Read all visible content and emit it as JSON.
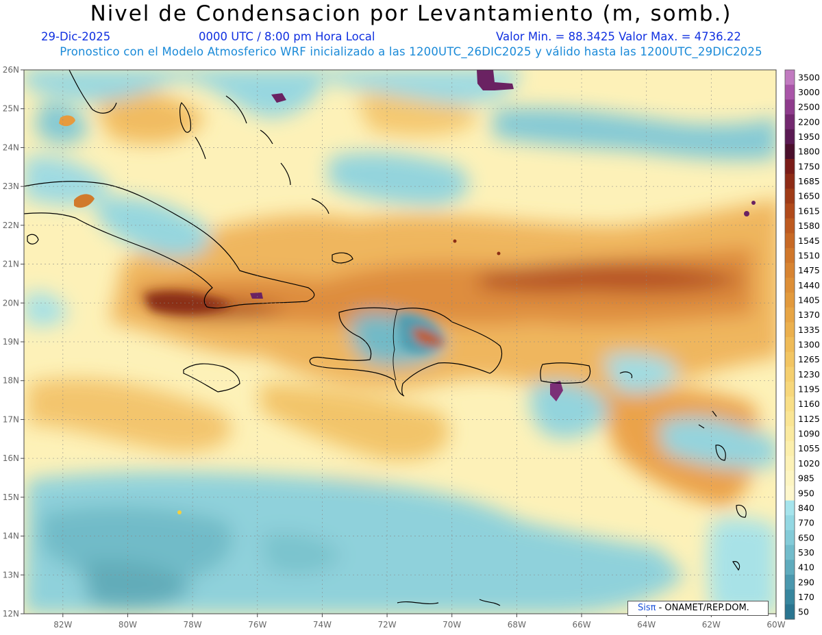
{
  "title": "Nivel de Condensacion por Levantamiento (m, somb.)",
  "header": {
    "date": "29-Dic-2025",
    "time": "0000 UTC / 8:00 pm Hora Local",
    "minmax": "Valor Min. = 88.3425  Valor Max. = 4736.22",
    "subtitle": "Pronostico con el Modelo Atmosferico WRF inicializado a las 1200UTC_26DIC2025 y válido hasta las  1200UTC_29DIC2025"
  },
  "map": {
    "lon_labels": [
      "82W",
      "80W",
      "78W",
      "76W",
      "74W",
      "72W",
      "70W",
      "68W",
      "66W",
      "64W",
      "62W",
      "60W"
    ],
    "lat_labels": [
      "26N",
      "25N",
      "24N",
      "23N",
      "22N",
      "21N",
      "20N",
      "19N",
      "18N",
      "17N",
      "16N",
      "15N",
      "14N",
      "13N",
      "12N"
    ],
    "lon_range": [
      -83.2,
      -60
    ],
    "lat_range": [
      12,
      26
    ]
  },
  "colorbar": {
    "levels": [
      "3500",
      "3000",
      "2500",
      "2200",
      "1950",
      "1800",
      "1750",
      "1685",
      "1650",
      "1615",
      "1580",
      "1545",
      "1510",
      "1475",
      "1440",
      "1405",
      "1370",
      "1335",
      "1300",
      "1265",
      "1230",
      "1195",
      "1160",
      "1125",
      "1090",
      "1055",
      "1020",
      "985",
      "950",
      "840",
      "770",
      "650",
      "530",
      "410",
      "290",
      "170",
      "50"
    ],
    "colors": [
      "#c17ac0",
      "#a955a8",
      "#8e3b8c",
      "#73286f",
      "#5a1a53",
      "#4a0f2c",
      "#7a1c18",
      "#8e2b16",
      "#9f3b17",
      "#b04a1b",
      "#bd5a20",
      "#c76925",
      "#d0772b",
      "#d78432",
      "#dd8f37",
      "#e29a3d",
      "#e7a545",
      "#ebb04e",
      "#efbb58",
      "#f2c563",
      "#f5cf6f",
      "#f7d77b",
      "#f9df87",
      "#fae594",
      "#fbeaa0",
      "#fcefac",
      "#fdf2b7",
      "#fdf5c2",
      "#fef7cc",
      "#a6e4ec",
      "#94d8e3",
      "#84cbd8",
      "#72bccb",
      "#5fabbd",
      "#4b98ae",
      "#37869e",
      "#2a7590"
    ]
  },
  "credit": {
    "brand": "Sisπ",
    "text": " - ONAMET/REP.DOM."
  }
}
